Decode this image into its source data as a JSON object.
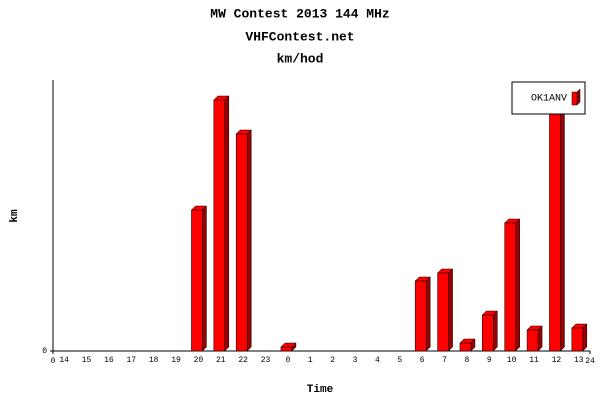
{
  "chart_data": {
    "type": "bar",
    "title": "MW Contest 2013 144 MHz",
    "subtitle": "VHFContest.net",
    "annotation": "km/hod",
    "x_label": "Time",
    "y_label": "km",
    "categories": [
      "14",
      "15",
      "16",
      "17",
      "18",
      "19",
      "20",
      "21",
      "22",
      "23",
      "0",
      "1",
      "2",
      "3",
      "4",
      "5",
      "6",
      "7",
      "8",
      "9",
      "10",
      "11",
      "12",
      "13"
    ],
    "series": [
      {
        "name": "OK1ANV",
        "color": "#ff0000",
        "values": [
          0,
          0,
          0,
          0,
          0,
          0,
          141,
          251,
          217,
          0,
          4,
          0,
          0,
          0,
          0,
          0,
          70,
          78,
          8,
          36,
          128,
          21,
          250,
          23
        ]
      }
    ],
    "xlim": [
      0,
      24
    ],
    "xticks": [
      0,
      24
    ],
    "ylim": [
      0,
      271
    ],
    "yticks": [
      0
    ],
    "legend": "top-right"
  }
}
